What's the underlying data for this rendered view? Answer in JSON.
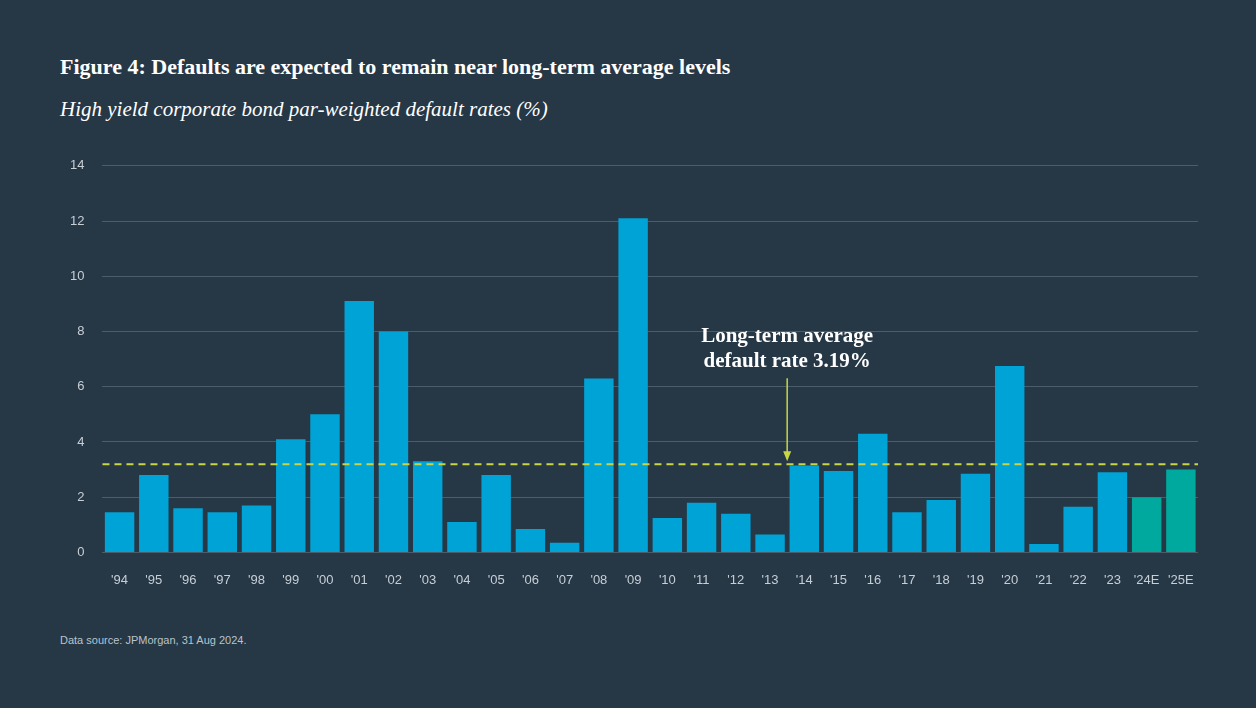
{
  "chart_data": {
    "type": "bar",
    "title": "Figure 4: Defaults are expected to remain near long-term average levels",
    "subtitle": "High yield corporate bond par-weighted default rates (%)",
    "source": "Data source: JPMorgan, 31 Aug 2024.",
    "categories": [
      "'94",
      "'95",
      "'96",
      "'97",
      "'98",
      "'99",
      "'00",
      "'01",
      "'02",
      "'03",
      "'04",
      "'05",
      "'06",
      "'07",
      "'08",
      "'09",
      "'10",
      "'11",
      "'12",
      "'13",
      "'14",
      "'15",
      "'16",
      "'17",
      "'18",
      "'19",
      "'20",
      "'21",
      "'22",
      "'23",
      "'24E",
      "'25E"
    ],
    "values": [
      1.45,
      2.8,
      1.6,
      1.45,
      1.7,
      4.1,
      5.0,
      9.1,
      8.0,
      3.3,
      1.1,
      2.8,
      0.85,
      0.35,
      6.3,
      12.1,
      1.25,
      1.8,
      1.4,
      0.65,
      3.15,
      2.95,
      4.3,
      1.45,
      1.9,
      2.85,
      6.75,
      0.3,
      1.65,
      2.9,
      2.0,
      3.0
    ],
    "colors": [
      "#00a3d6",
      "#00a3d6",
      "#00a3d6",
      "#00a3d6",
      "#00a3d6",
      "#00a3d6",
      "#00a3d6",
      "#00a3d6",
      "#00a3d6",
      "#00a3d6",
      "#00a3d6",
      "#00a3d6",
      "#00a3d6",
      "#00a3d6",
      "#00a3d6",
      "#00a3d6",
      "#00a3d6",
      "#00a3d6",
      "#00a3d6",
      "#00a3d6",
      "#00a3d6",
      "#00a3d6",
      "#00a3d6",
      "#00a3d6",
      "#00a3d6",
      "#00a3d6",
      "#00a3d6",
      "#00a3d6",
      "#00a3d6",
      "#00a3d6",
      "#00a99d",
      "#00a99d"
    ],
    "ylim": [
      0,
      14
    ],
    "yticks": [
      0,
      2,
      4,
      6,
      8,
      10,
      12,
      14
    ],
    "grid": true,
    "annotations": [
      {
        "type": "hline",
        "value": 3.19,
        "text": [
          "Long-term average",
          "default rate 3.19%"
        ],
        "color": "#c8d645",
        "line_style": "dashed"
      }
    ]
  }
}
